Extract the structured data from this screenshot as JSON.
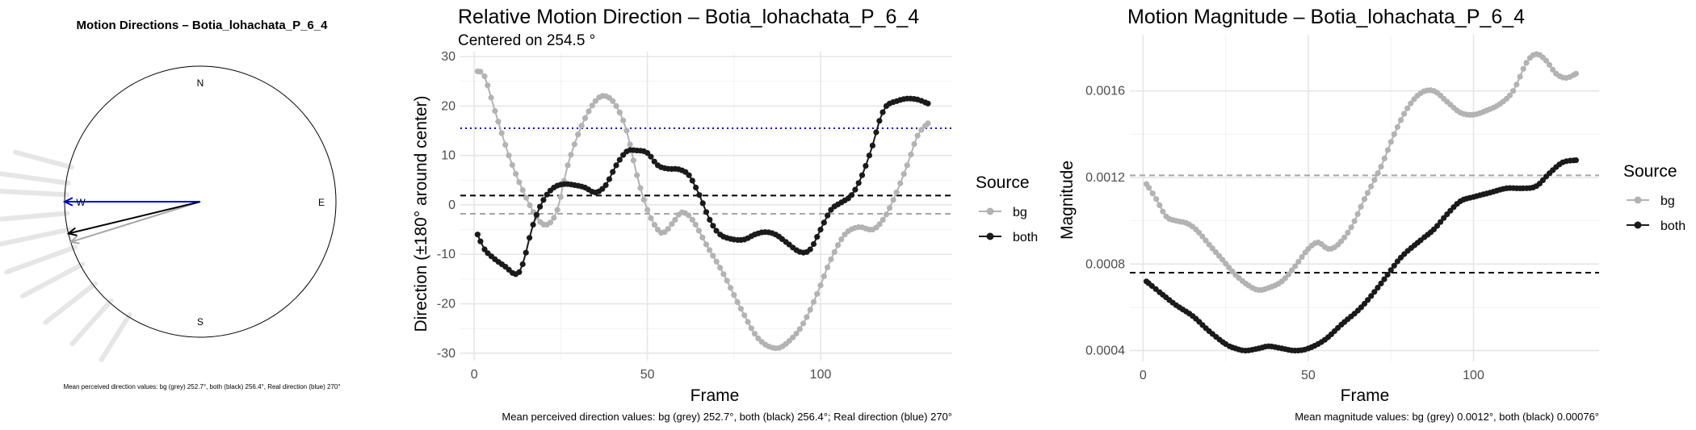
{
  "chart_data": [
    {
      "type": "compass",
      "title": "Motion Directions – Botia_lohachata_P_6_4",
      "compass_labels": {
        "n": "N",
        "e": "E",
        "s": "S",
        "w": "W"
      },
      "arrows": [
        {
          "name": "bg",
          "direction_deg": 252.7,
          "color": "#a6a6a6"
        },
        {
          "name": "both",
          "direction_deg": 256.4,
          "color": "#000000"
        },
        {
          "name": "real",
          "direction_deg": 270,
          "color": "#0000cc"
        }
      ],
      "caption": "Mean perceived direction values: bg (grey) 252.7°, both (black) 256.4°, Real direction (blue) 270°"
    },
    {
      "type": "line",
      "title": "Relative Motion Direction – Botia_lohachata_P_6_4",
      "subtitle": "Centered on  254.5 °",
      "xlabel": "Frame",
      "ylabel": "Direction (±180° around center)",
      "xlim": [
        -4,
        138
      ],
      "ylim": [
        -31.5,
        31
      ],
      "xticks": [
        0,
        50,
        100
      ],
      "yticks": [
        -30,
        -20,
        -10,
        0,
        10,
        20,
        30
      ],
      "hlines": [
        {
          "name": "real",
          "y": 15.5,
          "color": "#0000cc",
          "style": "dotted"
        },
        {
          "name": "both",
          "y": 1.9,
          "color": "#000000",
          "style": "dashed"
        },
        {
          "name": "bg",
          "y": -1.8,
          "color": "#a6a6a6",
          "style": "dashed"
        }
      ],
      "legend": {
        "title": "Source",
        "position": "right",
        "entries": [
          "bg",
          "both"
        ]
      },
      "series": [
        {
          "name": "bg",
          "color": "#b3b3b3",
          "knots": [
            [
              1,
              27
            ],
            [
              3,
              26
            ],
            [
              6,
              19
            ],
            [
              10,
              10
            ],
            [
              14,
              3
            ],
            [
              18,
              -2.5
            ],
            [
              21,
              -4
            ],
            [
              24,
              -1
            ],
            [
              27,
              8
            ],
            [
              31,
              16
            ],
            [
              35,
              21
            ],
            [
              38,
              22
            ],
            [
              41,
              20
            ],
            [
              44,
              15
            ],
            [
              47,
              6
            ],
            [
              50,
              -1
            ],
            [
              53,
              -5
            ],
            [
              55,
              -5.5
            ],
            [
              58,
              -3
            ],
            [
              60,
              -1.5
            ],
            [
              63,
              -3
            ],
            [
              67,
              -8
            ],
            [
              72,
              -14
            ],
            [
              77,
              -21
            ],
            [
              82,
              -27
            ],
            [
              87,
              -29
            ],
            [
              91,
              -27.5
            ],
            [
              95,
              -24
            ],
            [
              99,
              -18
            ],
            [
              103,
              -11
            ],
            [
              107,
              -6
            ],
            [
              111,
              -4.5
            ],
            [
              115,
              -5
            ],
            [
              118,
              -3
            ],
            [
              121,
              1
            ],
            [
              125,
              8
            ],
            [
              128,
              14
            ],
            [
              131,
              16.5
            ]
          ]
        },
        {
          "name": "both",
          "color": "#1a1a1a",
          "knots": [
            [
              1,
              -6
            ],
            [
              3,
              -9
            ],
            [
              6,
              -11
            ],
            [
              9,
              -12.5
            ],
            [
              12,
              -14
            ],
            [
              14,
              -12
            ],
            [
              17,
              -4
            ],
            [
              20,
              1
            ],
            [
              23,
              3.5
            ],
            [
              26,
              4.2
            ],
            [
              29,
              4
            ],
            [
              32,
              3.5
            ],
            [
              35,
              2.5
            ],
            [
              38,
              4
            ],
            [
              41,
              8
            ],
            [
              44,
              10.8
            ],
            [
              47,
              11
            ],
            [
              50,
              10.5
            ],
            [
              53,
              8
            ],
            [
              56,
              7.3
            ],
            [
              59,
              7.2
            ],
            [
              62,
              6
            ],
            [
              65,
              2
            ],
            [
              68,
              -3
            ],
            [
              71,
              -6
            ],
            [
              75,
              -7
            ],
            [
              78,
              -7
            ],
            [
              81,
              -6
            ],
            [
              84,
              -5.5
            ],
            [
              87,
              -6
            ],
            [
              90,
              -7.5
            ],
            [
              94,
              -9.5
            ],
            [
              97,
              -9
            ],
            [
              100,
              -5
            ],
            [
              103,
              -1
            ],
            [
              106,
              0.5
            ],
            [
              109,
              2
            ],
            [
              112,
              6
            ],
            [
              115,
              12
            ],
            [
              117,
              17
            ],
            [
              119,
              20
            ],
            [
              122,
              21
            ],
            [
              125,
              21.5
            ],
            [
              128,
              21.3
            ],
            [
              131,
              20.5
            ]
          ]
        }
      ],
      "caption": "Mean perceived direction values: bg (grey) 252.7°, both (black) 256.4°; Real direction (blue) 270°"
    },
    {
      "type": "line",
      "title": "Motion Magnitude – Botia_lohachata_P_6_4",
      "xlabel": "Frame",
      "ylabel": "Magnitude",
      "xlim": [
        -4,
        138
      ],
      "ylim": [
        0.00035,
        0.00186
      ],
      "xticks": [
        0,
        50,
        100
      ],
      "yticks": [
        0.0004,
        0.0008,
        0.0012,
        0.0016
      ],
      "ytick_labels": [
        "0.0004",
        "0.0008",
        "0.0012",
        "0.0016"
      ],
      "hlines": [
        {
          "name": "bg",
          "y": 0.00121,
          "color": "#a6a6a6",
          "style": "dashed"
        },
        {
          "name": "both",
          "y": 0.00076,
          "color": "#000000",
          "style": "dashed"
        }
      ],
      "legend": {
        "title": "Source",
        "position": "right",
        "entries": [
          "bg",
          "both"
        ]
      },
      "series": [
        {
          "name": "bg",
          "color": "#b3b3b3",
          "knots": [
            [
              1,
              0.00117
            ],
            [
              4,
              0.0011
            ],
            [
              7,
              0.00102
            ],
            [
              10,
              0.001
            ],
            [
              13,
              0.00099
            ],
            [
              16,
              0.00096
            ],
            [
              20,
              0.00089
            ],
            [
              24,
              0.00082
            ],
            [
              28,
              0.00075
            ],
            [
              32,
              0.0007
            ],
            [
              35,
              0.00068
            ],
            [
              38,
              0.00069
            ],
            [
              42,
              0.00072
            ],
            [
              46,
              0.00079
            ],
            [
              50,
              0.00087
            ],
            [
              53,
              0.0009
            ],
            [
              56,
              0.00087
            ],
            [
              59,
              0.00089
            ],
            [
              63,
              0.00097
            ],
            [
              67,
              0.0011
            ],
            [
              72,
              0.00125
            ],
            [
              76,
              0.0014
            ],
            [
              80,
              0.00152
            ],
            [
              84,
              0.00159
            ],
            [
              88,
              0.0016
            ],
            [
              92,
              0.00155
            ],
            [
              96,
              0.0015
            ],
            [
              100,
              0.00149
            ],
            [
              104,
              0.00151
            ],
            [
              108,
              0.00154
            ],
            [
              112,
              0.0016
            ],
            [
              116,
              0.00173
            ],
            [
              119,
              0.00177
            ],
            [
              122,
              0.00174
            ],
            [
              125,
              0.00168
            ],
            [
              128,
              0.00166
            ],
            [
              131,
              0.00168
            ]
          ]
        },
        {
          "name": "both",
          "color": "#1a1a1a",
          "knots": [
            [
              1,
              0.00072
            ],
            [
              5,
              0.00067
            ],
            [
              10,
              0.00061
            ],
            [
              15,
              0.00056
            ],
            [
              20,
              0.00049
            ],
            [
              25,
              0.00043
            ],
            [
              28,
              0.00041
            ],
            [
              31,
              0.0004
            ],
            [
              35,
              0.00041
            ],
            [
              38,
              0.00042
            ],
            [
              42,
              0.00041
            ],
            [
              46,
              0.0004
            ],
            [
              50,
              0.00041
            ],
            [
              55,
              0.00045
            ],
            [
              60,
              0.00052
            ],
            [
              66,
              0.0006
            ],
            [
              72,
              0.00071
            ],
            [
              78,
              0.00083
            ],
            [
              84,
              0.00091
            ],
            [
              88,
              0.00096
            ],
            [
              92,
              0.00103
            ],
            [
              96,
              0.00109
            ],
            [
              100,
              0.00111
            ],
            [
              105,
              0.00113
            ],
            [
              110,
              0.00115
            ],
            [
              115,
              0.00115
            ],
            [
              119,
              0.00116
            ],
            [
              123,
              0.00122
            ],
            [
              127,
              0.00127
            ],
            [
              131,
              0.00128
            ]
          ]
        }
      ],
      "caption": "Mean magnitude values: bg (grey) 0.0012°, both (black) 0.00076°"
    }
  ]
}
